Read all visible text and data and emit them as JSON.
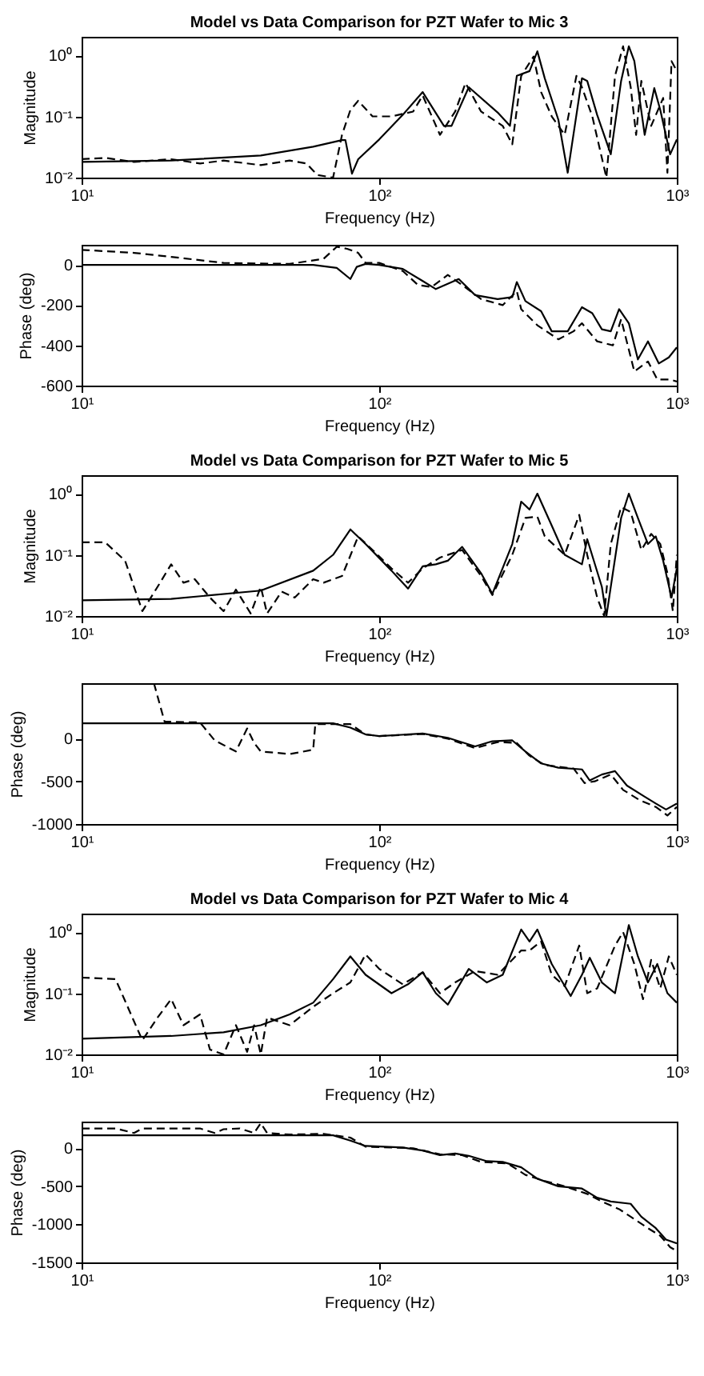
{
  "chart_data": [
    {
      "type": "line",
      "title": "Model vs Data Comparison for PZT Wafer to Mic 3",
      "xlabel": "Frequency (Hz)",
      "ylabel": "Magnitude",
      "log": "xy",
      "xlim": [
        10,
        1000
      ],
      "ylim": [
        0.01,
        2
      ],
      "xticks": [
        {
          "value": 10,
          "label": "10¹"
        },
        {
          "value": 100,
          "label": "10²"
        },
        {
          "value": 1000,
          "label": "10³"
        }
      ],
      "yticks": [
        {
          "value": 0.01,
          "label": "10⁻²"
        },
        {
          "value": 0.1,
          "label": "10⁻¹"
        },
        {
          "value": 1,
          "label": "10⁰"
        }
      ],
      "series": [
        {
          "color": "#000000",
          "line_style": "solid",
          "x": [
            10,
            20,
            40,
            60,
            75,
            77,
            81,
            85,
            100,
            120,
            140,
            165,
            175,
            200,
            250,
            275,
            290,
            320,
            340,
            360,
            400,
            430,
            480,
            500,
            540,
            600,
            650,
            690,
            720,
            780,
            840,
            880,
            950,
            1000
          ],
          "values": [
            0.018,
            0.019,
            0.023,
            0.032,
            0.041,
            0.041,
            0.0116,
            0.02,
            0.042,
            0.106,
            0.25,
            0.07,
            0.07,
            0.3,
            0.116,
            0.07,
            0.46,
            0.55,
            1.16,
            0.42,
            0.088,
            0.012,
            0.42,
            0.38,
            0.106,
            0.024,
            0.38,
            1.4,
            0.8,
            0.05,
            0.29,
            0.127,
            0.024,
            0.042
          ]
        },
        {
          "color": "#000000",
          "line_style": "dashed",
          "x": [
            10,
            12,
            15,
            20,
            25,
            30,
            40,
            50,
            57,
            62,
            70,
            75,
            80,
            85,
            95,
            110,
            130,
            140,
            160,
            180,
            195,
            220,
            260,
            280,
            300,
            330,
            350,
            380,
            420,
            460,
            480,
            520,
            580,
            620,
            660,
            700,
            730,
            760,
            820,
            900,
            930,
            960,
            1000
          ],
          "values": [
            0.02,
            0.021,
            0.018,
            0.02,
            0.017,
            0.019,
            0.016,
            0.019,
            0.017,
            0.011,
            0.01,
            0.05,
            0.127,
            0.18,
            0.1,
            0.1,
            0.12,
            0.22,
            0.05,
            0.12,
            0.35,
            0.12,
            0.07,
            0.035,
            0.46,
            0.95,
            0.25,
            0.1,
            0.05,
            0.46,
            0.3,
            0.1,
            0.01,
            0.46,
            1.4,
            0.3,
            0.05,
            0.38,
            0.07,
            0.2,
            0.012,
            0.8,
            0.55
          ]
        }
      ]
    },
    {
      "type": "line",
      "xlabel": "Frequency (Hz)",
      "ylabel": "Phase (deg)",
      "log": "x",
      "xlim": [
        10,
        1000
      ],
      "ylim": [
        -600,
        100
      ],
      "xticks": [
        {
          "value": 10,
          "label": "10¹"
        },
        {
          "value": 100,
          "label": "10²"
        },
        {
          "value": 1000,
          "label": "10³"
        }
      ],
      "yticks": [
        -600,
        -400,
        -200,
        0
      ],
      "series": [
        {
          "color": "#000000",
          "line_style": "solid",
          "x": [
            10,
            60,
            72,
            80,
            84,
            90,
            100,
            120,
            140,
            155,
            185,
            210,
            250,
            280,
            290,
            310,
            350,
            380,
            430,
            480,
            520,
            560,
            600,
            640,
            690,
            740,
            800,
            870,
            940,
            1000
          ],
          "values": [
            0,
            0,
            -15,
            -70,
            -10,
            5,
            0,
            -20,
            -80,
            -120,
            -70,
            -150,
            -170,
            -160,
            -85,
            -180,
            -230,
            -330,
            -330,
            -210,
            -240,
            -320,
            -330,
            -220,
            -290,
            -470,
            -380,
            -490,
            -460,
            -410
          ]
        },
        {
          "color": "#000000",
          "line_style": "dashed",
          "x": [
            10,
            15,
            20,
            30,
            50,
            65,
            72,
            78,
            85,
            90,
            100,
            120,
            135,
            150,
            170,
            190,
            220,
            260,
            290,
            300,
            340,
            400,
            450,
            480,
            540,
            610,
            650,
            720,
            800,
            860,
            950,
            1000
          ],
          "values": [
            75,
            60,
            40,
            10,
            5,
            30,
            90,
            80,
            60,
            10,
            10,
            -30,
            -100,
            -110,
            -50,
            -100,
            -170,
            -200,
            -130,
            -220,
            -300,
            -370,
            -330,
            -290,
            -380,
            -400,
            -270,
            -530,
            -480,
            -570,
            -570,
            -580
          ]
        }
      ]
    },
    {
      "type": "line",
      "title": "Model vs Data Comparison for PZT Wafer to Mic 5",
      "xlabel": "Frequency (Hz)",
      "ylabel": "Magnitude",
      "log": "xy",
      "xlim": [
        10,
        1000
      ],
      "ylim": [
        0.01,
        2
      ],
      "xticks": [
        {
          "value": 10,
          "label": "10¹"
        },
        {
          "value": 100,
          "label": "10²"
        },
        {
          "value": 1000,
          "label": "10³"
        }
      ],
      "yticks": [
        {
          "value": 0.01,
          "label": "10⁻²"
        },
        {
          "value": 0.1,
          "label": "10⁻¹"
        },
        {
          "value": 1,
          "label": "10⁰"
        }
      ],
      "series": [
        {
          "color": "#000000",
          "line_style": "solid",
          "x": [
            10,
            20,
            40,
            60,
            70,
            80,
            90,
            110,
            125,
            140,
            155,
            170,
            190,
            220,
            240,
            280,
            300,
            320,
            340,
            380,
            420,
            480,
            500,
            560,
            580,
            650,
            690,
            740,
            800,
            850,
            900,
            960,
            1000
          ],
          "values": [
            0.018,
            0.019,
            0.026,
            0.055,
            0.1,
            0.26,
            0.15,
            0.055,
            0.028,
            0.065,
            0.07,
            0.08,
            0.135,
            0.05,
            0.023,
            0.15,
            0.74,
            0.55,
            1,
            0.3,
            0.1,
            0.07,
            0.18,
            0.03,
            0.01,
            0.4,
            1,
            0.4,
            0.15,
            0.2,
            0.08,
            0.02,
            0.06
          ]
        },
        {
          "color": "#000000",
          "line_style": "dashed",
          "x": [
            10,
            12,
            14,
            16,
            18,
            20,
            22,
            24,
            27,
            30,
            33,
            37,
            40,
            42,
            47,
            52,
            60,
            65,
            75,
            85,
            95,
            110,
            125,
            140,
            160,
            190,
            220,
            240,
            280,
            310,
            340,
            360,
            420,
            470,
            500,
            540,
            570,
            600,
            650,
            700,
            760,
            820,
            880,
            930,
            970,
            1000
          ],
          "values": [
            0.16,
            0.16,
            0.08,
            0.012,
            0.03,
            0.07,
            0.035,
            0.04,
            0.02,
            0.012,
            0.027,
            0.011,
            0.03,
            0.011,
            0.025,
            0.02,
            0.04,
            0.035,
            0.045,
            0.2,
            0.12,
            0.06,
            0.035,
            0.06,
            0.09,
            0.12,
            0.045,
            0.022,
            0.1,
            0.4,
            0.42,
            0.2,
            0.1,
            0.45,
            0.1,
            0.02,
            0.01,
            0.15,
            0.6,
            0.5,
            0.12,
            0.22,
            0.15,
            0.05,
            0.012,
            0.1
          ]
        }
      ]
    },
    {
      "type": "line",
      "xlabel": "Frequency (Hz)",
      "ylabel": "Phase (deg)",
      "log": "x",
      "xlim": [
        10,
        1000
      ],
      "ylim": [
        -1000,
        650
      ],
      "xticks": [
        {
          "value": 10,
          "label": "10¹"
        },
        {
          "value": 100,
          "label": "10²"
        },
        {
          "value": 1000,
          "label": "10³"
        }
      ],
      "yticks": [
        -1000,
        -500,
        0
      ],
      "series": [
        {
          "color": "#000000",
          "line_style": "solid",
          "x": [
            10,
            70,
            80,
            90,
            100,
            140,
            170,
            210,
            240,
            280,
            310,
            350,
            400,
            480,
            510,
            560,
            620,
            680,
            780,
            850,
            920,
            1000
          ],
          "values": [
            180,
            180,
            130,
            50,
            30,
            60,
            10,
            -90,
            -30,
            -20,
            -150,
            -290,
            -340,
            -360,
            -490,
            -420,
            -380,
            -550,
            -680,
            -760,
            -830,
            -760
          ]
        },
        {
          "color": "#000000",
          "line_style": "dashed",
          "x": [
            17.5,
            19,
            25,
            28,
            33,
            36,
            38,
            40,
            50,
            60,
            61,
            80,
            90,
            100,
            140,
            170,
            210,
            250,
            290,
            320,
            360,
            450,
            490,
            530,
            600,
            660,
            750,
            850,
            930,
            1000
          ],
          "values": [
            650,
            200,
            190,
            -20,
            -150,
            120,
            -50,
            -150,
            -180,
            -130,
            170,
            170,
            50,
            30,
            55,
            0,
            -110,
            -40,
            -50,
            -200,
            -310,
            -350,
            -520,
            -500,
            -420,
            -600,
            -720,
            -800,
            -900,
            -800
          ]
        }
      ]
    },
    {
      "type": "line",
      "title": "Model vs Data Comparison for PZT Wafer to Mic 4",
      "xlabel": "Frequency (Hz)",
      "ylabel": "Magnitude",
      "log": "xy",
      "xlim": [
        10,
        1000
      ],
      "ylim": [
        0.01,
        2
      ],
      "xticks": [
        {
          "value": 10,
          "label": "10¹"
        },
        {
          "value": 100,
          "label": "10²"
        },
        {
          "value": 1000,
          "label": "10³"
        }
      ],
      "yticks": [
        {
          "value": 0.01,
          "label": "10⁻²"
        },
        {
          "value": 0.1,
          "label": "10⁻¹"
        },
        {
          "value": 1,
          "label": "10⁰"
        }
      ],
      "series": [
        {
          "color": "#000000",
          "line_style": "solid",
          "x": [
            10,
            20,
            30,
            40,
            50,
            60,
            70,
            80,
            90,
            110,
            125,
            140,
            155,
            170,
            200,
            230,
            260,
            300,
            320,
            340,
            380,
            440,
            480,
            510,
            560,
            620,
            690,
            740,
            800,
            860,
            930,
            1000
          ],
          "values": [
            0.018,
            0.02,
            0.023,
            0.03,
            0.045,
            0.07,
            0.17,
            0.4,
            0.2,
            0.1,
            0.14,
            0.22,
            0.1,
            0.065,
            0.25,
            0.15,
            0.2,
            1.1,
            0.7,
            1.1,
            0.3,
            0.09,
            0.2,
            0.38,
            0.15,
            0.1,
            1.3,
            0.4,
            0.15,
            0.3,
            0.1,
            0.07
          ]
        },
        {
          "color": "#000000",
          "line_style": "dashed",
          "x": [
            10,
            13,
            16,
            18,
            20,
            22,
            25,
            27,
            30,
            33,
            36,
            38,
            40,
            42,
            50,
            60,
            70,
            80,
            90,
            100,
            120,
            140,
            160,
            180,
            210,
            250,
            300,
            320,
            350,
            380,
            420,
            470,
            500,
            540,
            620,
            660,
            720,
            770,
            820,
            880,
            940,
            1000
          ],
          "values": [
            0.18,
            0.17,
            0.017,
            0.04,
            0.08,
            0.03,
            0.045,
            0.012,
            0.01,
            0.03,
            0.011,
            0.03,
            0.01,
            0.04,
            0.03,
            0.06,
            0.1,
            0.15,
            0.43,
            0.25,
            0.14,
            0.22,
            0.1,
            0.15,
            0.23,
            0.2,
            0.5,
            0.5,
            0.7,
            0.2,
            0.13,
            0.6,
            0.1,
            0.12,
            0.6,
            1,
            0.3,
            0.08,
            0.35,
            0.12,
            0.4,
            0.2
          ]
        }
      ]
    },
    {
      "type": "line",
      "xlabel": "Frequency (Hz)",
      "ylabel": "Phase (deg)",
      "log": "x",
      "xlim": [
        10,
        1000
      ],
      "ylim": [
        -1500,
        350
      ],
      "xticks": [
        {
          "value": 10,
          "label": "10¹"
        },
        {
          "value": 100,
          "label": "10²"
        },
        {
          "value": 1000,
          "label": "10³"
        }
      ],
      "yticks": [
        -1500,
        -1000,
        -500,
        0
      ],
      "series": [
        {
          "color": "#000000",
          "line_style": "solid",
          "x": [
            10,
            70,
            80,
            90,
            120,
            140,
            160,
            180,
            200,
            230,
            260,
            300,
            340,
            400,
            480,
            540,
            600,
            700,
            760,
            850,
            920,
            1000
          ],
          "values": [
            170,
            170,
            100,
            30,
            10,
            -30,
            -90,
            -70,
            -100,
            -170,
            -180,
            -250,
            -400,
            -500,
            -530,
            -650,
            -700,
            -730,
            -900,
            -1050,
            -1200,
            -1250
          ]
        },
        {
          "color": "#000000",
          "line_style": "dashed",
          "x": [
            10,
            13,
            15,
            16,
            25,
            28,
            30,
            34,
            38,
            40,
            42,
            50,
            65,
            80,
            90,
            130,
            160,
            190,
            220,
            270,
            310,
            360,
            420,
            500,
            560,
            640,
            700,
            800,
            880,
            950,
            1000
          ],
          "values": [
            260,
            260,
            200,
            260,
            260,
            200,
            250,
            260,
            200,
            330,
            200,
            180,
            190,
            140,
            20,
            0,
            -80,
            -90,
            -180,
            -200,
            -350,
            -430,
            -500,
            -600,
            -700,
            -800,
            -900,
            -1050,
            -1150,
            -1300,
            -1350
          ]
        }
      ]
    }
  ]
}
